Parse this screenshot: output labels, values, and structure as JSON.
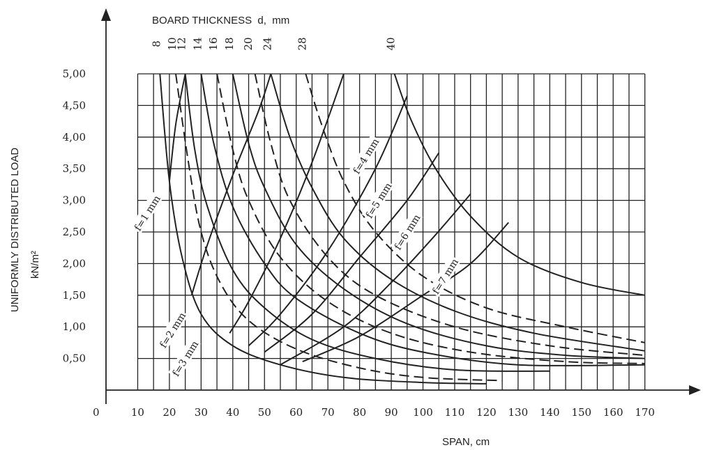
{
  "chart_data": {
    "type": "line",
    "title": "BOARD THICKNESS  d,  mm",
    "xlabel": "SPAN, cm",
    "ylabel_line1": "UNIFORMLY DISTRIBUTED LOAD",
    "ylabel_line2": "kN/m²",
    "origin_label": "0",
    "xlim": [
      0,
      170
    ],
    "ylim": [
      0,
      5
    ],
    "grid": true,
    "x_ticks": [
      "10",
      "20",
      "30",
      "40",
      "50",
      "60",
      "70",
      "80",
      "90",
      "100",
      "110",
      "120",
      "130",
      "140",
      "150",
      "160",
      "170"
    ],
    "y_ticks": [
      "0,50",
      "1,00",
      "1,50",
      "2,00",
      "2,50",
      "3,00",
      "3,50",
      "4,00",
      "4,50",
      "5,00"
    ],
    "thickness_labels": [
      {
        "text": "8",
        "x": 17
      },
      {
        "text": "10",
        "x": 22
      },
      {
        "text": "12",
        "x": 25
      },
      {
        "text": "14",
        "x": 30
      },
      {
        "text": "16",
        "x": 35
      },
      {
        "text": "18",
        "x": 40
      },
      {
        "text": "20",
        "x": 46
      },
      {
        "text": "24",
        "x": 52
      },
      {
        "text": "28",
        "x": 63
      },
      {
        "text": "40",
        "x": 91
      }
    ],
    "series": [
      {
        "thickness": 8,
        "style": "solid",
        "points": [
          [
            17,
            5.0
          ],
          [
            20,
            3.3
          ],
          [
            24,
            2.1
          ],
          [
            30,
            1.2
          ],
          [
            40,
            0.7
          ],
          [
            55,
            0.4
          ],
          [
            75,
            0.2
          ],
          [
            100,
            0.12
          ],
          [
            120,
            0.1
          ]
        ]
      },
      {
        "thickness": 10,
        "style": "dashed",
        "points": [
          [
            22,
            5.0
          ],
          [
            26,
            3.6
          ],
          [
            30,
            2.5
          ],
          [
            36,
            1.7
          ],
          [
            45,
            1.1
          ],
          [
            60,
            0.65
          ],
          [
            80,
            0.35
          ],
          [
            100,
            0.2
          ],
          [
            125,
            0.15
          ]
        ]
      },
      {
        "thickness": 12,
        "style": "solid",
        "points": [
          [
            25,
            5.0
          ],
          [
            28,
            3.8
          ],
          [
            32,
            2.9
          ],
          [
            40,
            1.9
          ],
          [
            50,
            1.3
          ],
          [
            65,
            0.8
          ],
          [
            85,
            0.5
          ],
          [
            110,
            0.32
          ],
          [
            140,
            0.3
          ]
        ]
      },
      {
        "thickness": 14,
        "style": "solid",
        "points": [
          [
            30,
            5.0
          ],
          [
            34,
            3.9
          ],
          [
            40,
            2.9
          ],
          [
            50,
            2.0
          ],
          [
            60,
            1.45
          ],
          [
            80,
            0.9
          ],
          [
            100,
            0.6
          ],
          [
            130,
            0.4
          ],
          [
            170,
            0.4
          ]
        ]
      },
      {
        "thickness": 16,
        "style": "dashed",
        "points": [
          [
            35,
            5.0
          ],
          [
            40,
            3.8
          ],
          [
            45,
            3.0
          ],
          [
            55,
            2.1
          ],
          [
            70,
            1.4
          ],
          [
            90,
            0.9
          ],
          [
            115,
            0.6
          ],
          [
            145,
            0.45
          ],
          [
            170,
            0.42
          ]
        ]
      },
      {
        "thickness": 18,
        "style": "solid",
        "points": [
          [
            40,
            5.0
          ],
          [
            45,
            3.9
          ],
          [
            50,
            3.2
          ],
          [
            60,
            2.3
          ],
          [
            75,
            1.6
          ],
          [
            95,
            1.05
          ],
          [
            120,
            0.7
          ],
          [
            145,
            0.55
          ],
          [
            170,
            0.5
          ]
        ]
      },
      {
        "thickness": 20,
        "style": "dashed",
        "points": [
          [
            47,
            5.0
          ],
          [
            52,
            3.9
          ],
          [
            58,
            3.0
          ],
          [
            70,
            2.1
          ],
          [
            85,
            1.5
          ],
          [
            110,
            1.0
          ],
          [
            140,
            0.7
          ],
          [
            170,
            0.55
          ]
        ]
      },
      {
        "thickness": 24,
        "style": "solid",
        "points": [
          [
            52,
            5.0
          ],
          [
            58,
            4.0
          ],
          [
            65,
            3.2
          ],
          [
            75,
            2.4
          ],
          [
            90,
            1.75
          ],
          [
            110,
            1.25
          ],
          [
            135,
            0.9
          ],
          [
            170,
            0.62
          ]
        ]
      },
      {
        "thickness": 28,
        "style": "dashed",
        "points": [
          [
            63,
            5.0
          ],
          [
            68,
            4.2
          ],
          [
            75,
            3.3
          ],
          [
            85,
            2.5
          ],
          [
            100,
            1.8
          ],
          [
            120,
            1.3
          ],
          [
            145,
            1.0
          ],
          [
            170,
            0.75
          ]
        ]
      },
      {
        "thickness": 40,
        "style": "solid",
        "points": [
          [
            91,
            5.0
          ],
          [
            96,
            4.3
          ],
          [
            104,
            3.5
          ],
          [
            115,
            2.75
          ],
          [
            130,
            2.1
          ],
          [
            150,
            1.7
          ],
          [
            170,
            1.5
          ]
        ]
      },
      {
        "deflection": "f=1 mm",
        "style": "solid",
        "points": [
          [
            20,
            3.3
          ],
          [
            22,
            4.2
          ],
          [
            25,
            5.0
          ]
        ]
      },
      {
        "deflection": "f=2 mm",
        "style": "solid",
        "points": [
          [
            27,
            1.5
          ],
          [
            32,
            2.3
          ],
          [
            40,
            3.4
          ],
          [
            48,
            4.4
          ],
          [
            52,
            5.0
          ]
        ]
      },
      {
        "deflection": "f=3 mm",
        "style": "solid",
        "points": [
          [
            39,
            0.9
          ],
          [
            45,
            1.4
          ],
          [
            55,
            2.4
          ],
          [
            65,
            3.6
          ],
          [
            75,
            5.0
          ]
        ]
      },
      {
        "deflection": "f=4 mm",
        "style": "solid",
        "points": [
          [
            45,
            0.7
          ],
          [
            55,
            1.2
          ],
          [
            70,
            2.2
          ],
          [
            85,
            3.5
          ],
          [
            95,
            4.65
          ]
        ]
      },
      {
        "deflection": "f=5 mm",
        "style": "solid",
        "points": [
          [
            50,
            0.6
          ],
          [
            65,
            1.2
          ],
          [
            80,
            2.1
          ],
          [
            95,
            3.0
          ],
          [
            105,
            3.75
          ]
        ]
      },
      {
        "deflection": "f=6 mm",
        "style": "solid",
        "points": [
          [
            55,
            0.4
          ],
          [
            75,
            1.0
          ],
          [
            90,
            1.7
          ],
          [
            103,
            2.4
          ],
          [
            115,
            3.1
          ]
        ]
      },
      {
        "deflection": "f=7 mm",
        "style": "solid",
        "points": [
          [
            62,
            0.45
          ],
          [
            80,
            0.85
          ],
          [
            100,
            1.5
          ],
          [
            115,
            2.0
          ],
          [
            127,
            2.65
          ]
        ]
      }
    ],
    "deflection_labels": [
      {
        "text": "f=1 mm",
        "x": 13,
        "y": 2.8
      },
      {
        "text": "f=2 mm",
        "x": 21,
        "y": 0.95
      },
      {
        "text": "f=3 mm",
        "x": 25,
        "y": 0.5
      },
      {
        "text": "f=4 mm",
        "x": 82,
        "y": 3.7
      },
      {
        "text": "f=5 mm",
        "x": 86,
        "y": 3.0
      },
      {
        "text": "f=6 mm",
        "x": 95,
        "y": 2.5
      },
      {
        "text": "f=7 mm",
        "x": 107,
        "y": 1.8
      }
    ]
  }
}
